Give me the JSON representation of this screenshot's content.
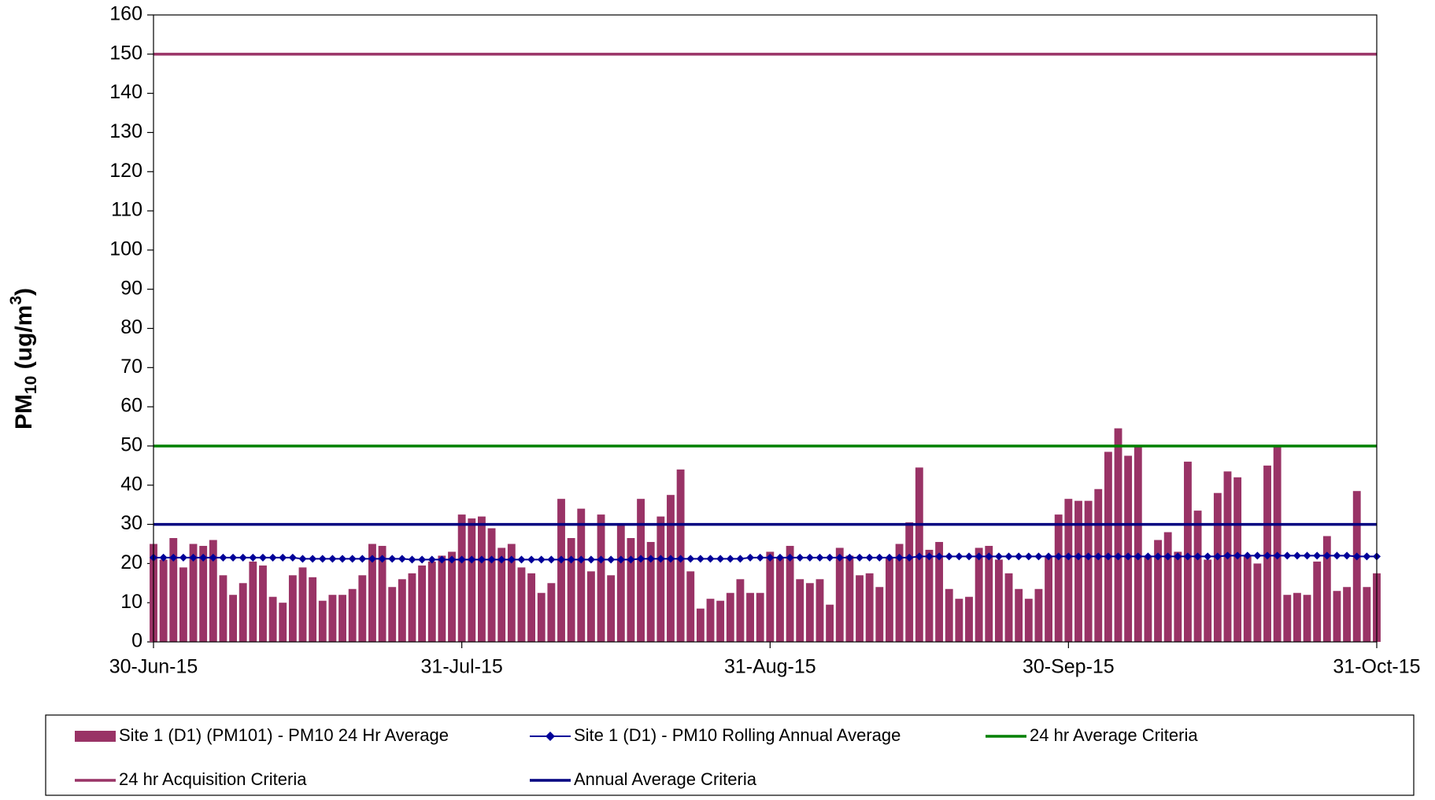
{
  "chart_data": {
    "type": "bar",
    "y_label": {
      "main": "PM",
      "sub": "10",
      "mid": " (ug/m",
      "sup": "3",
      "end": ")"
    },
    "ylim": [
      0,
      160
    ],
    "yticks": [
      0,
      10,
      20,
      30,
      40,
      50,
      60,
      70,
      80,
      90,
      100,
      110,
      120,
      130,
      140,
      150,
      160
    ],
    "xlim": [
      "2015-06-30",
      "2015-10-31"
    ],
    "xticks": [
      {
        "value": "2015-06-30",
        "label": "30-Jun-15"
      },
      {
        "value": "2015-07-31",
        "label": "31-Jul-15"
      },
      {
        "value": "2015-08-31",
        "label": "31-Aug-15"
      },
      {
        "value": "2015-09-30",
        "label": "30-Sep-15"
      },
      {
        "value": "2015-10-31",
        "label": "31-Oct-15"
      }
    ],
    "x": [
      "2015-06-30",
      "2015-07-01",
      "2015-07-02",
      "2015-07-03",
      "2015-07-04",
      "2015-07-05",
      "2015-07-06",
      "2015-07-07",
      "2015-07-08",
      "2015-07-09",
      "2015-07-10",
      "2015-07-11",
      "2015-07-12",
      "2015-07-13",
      "2015-07-14",
      "2015-07-15",
      "2015-07-16",
      "2015-07-17",
      "2015-07-18",
      "2015-07-19",
      "2015-07-20",
      "2015-07-21",
      "2015-07-22",
      "2015-07-23",
      "2015-07-24",
      "2015-07-25",
      "2015-07-26",
      "2015-07-27",
      "2015-07-28",
      "2015-07-29",
      "2015-07-30",
      "2015-07-31",
      "2015-08-01",
      "2015-08-02",
      "2015-08-03",
      "2015-08-04",
      "2015-08-05",
      "2015-08-06",
      "2015-08-07",
      "2015-08-08",
      "2015-08-09",
      "2015-08-10",
      "2015-08-11",
      "2015-08-12",
      "2015-08-13",
      "2015-08-14",
      "2015-08-15",
      "2015-08-16",
      "2015-08-17",
      "2015-08-18",
      "2015-08-19",
      "2015-08-20",
      "2015-08-21",
      "2015-08-22",
      "2015-08-23",
      "2015-08-24",
      "2015-08-25",
      "2015-08-26",
      "2015-08-27",
      "2015-08-28",
      "2015-08-29",
      "2015-08-30",
      "2015-08-31",
      "2015-09-01",
      "2015-09-02",
      "2015-09-03",
      "2015-09-04",
      "2015-09-05",
      "2015-09-06",
      "2015-09-07",
      "2015-09-08",
      "2015-09-09",
      "2015-09-10",
      "2015-09-11",
      "2015-09-12",
      "2015-09-13",
      "2015-09-14",
      "2015-09-15",
      "2015-09-16",
      "2015-09-17",
      "2015-09-18",
      "2015-09-19",
      "2015-09-20",
      "2015-09-21",
      "2015-09-22",
      "2015-09-23",
      "2015-09-24",
      "2015-09-25",
      "2015-09-26",
      "2015-09-27",
      "2015-09-28",
      "2015-09-29",
      "2015-09-30",
      "2015-10-01",
      "2015-10-02",
      "2015-10-03",
      "2015-10-04",
      "2015-10-05",
      "2015-10-06",
      "2015-10-07",
      "2015-10-08",
      "2015-10-09",
      "2015-10-10",
      "2015-10-11",
      "2015-10-12",
      "2015-10-13",
      "2015-10-14",
      "2015-10-15",
      "2015-10-16",
      "2015-10-17",
      "2015-10-18",
      "2015-10-19",
      "2015-10-20",
      "2015-10-21",
      "2015-10-22",
      "2015-10-23",
      "2015-10-24",
      "2015-10-25",
      "2015-10-26",
      "2015-10-27",
      "2015-10-28",
      "2015-10-29",
      "2015-10-30",
      "2015-10-31"
    ],
    "series": [
      {
        "name": "Site 1 (D1) (PM101) - PM10 24 Hr Average",
        "color": "#993366",
        "kind": "bar",
        "values": [
          25,
          21,
          26.5,
          19,
          25,
          24.5,
          26,
          17,
          12,
          15,
          20.5,
          19.5,
          11.5,
          10,
          17,
          19,
          16.5,
          10.5,
          12,
          12,
          13.5,
          17,
          25,
          24.5,
          14,
          16,
          17.5,
          19.5,
          20.5,
          22,
          23,
          32.5,
          31.5,
          32,
          29,
          24,
          25,
          19,
          17.5,
          12.5,
          15,
          36.5,
          26.5,
          34,
          18,
          32.5,
          17,
          30,
          26.5,
          36.5,
          25.5,
          32,
          37.5,
          44,
          18,
          8.5,
          11,
          10.5,
          12.5,
          16,
          12.5,
          12.5,
          23,
          21.5,
          24.5,
          16,
          15,
          16,
          9.5,
          24,
          22,
          17,
          17.5,
          14,
          21.5,
          25,
          30.5,
          44.5,
          23.5,
          25.5,
          13.5,
          11,
          11.5,
          24,
          24.5,
          21,
          17.5,
          13.5,
          11,
          13.5,
          22,
          32.5,
          36.5,
          36,
          36,
          39,
          48.5,
          54.5,
          47.5,
          50,
          22,
          26,
          28,
          23,
          46,
          33.5,
          21,
          38,
          43.5,
          42,
          22,
          20,
          45,
          50,
          12,
          12.5,
          12,
          20.5,
          27,
          13,
          14,
          38.5,
          14,
          17.5
        ]
      },
      {
        "name": "Site 1 (D1) - PM10 Rolling Annual Average",
        "color": "#000099",
        "kind": "line",
        "values": [
          21.5,
          21.5,
          21.5,
          21.5,
          21.5,
          21.5,
          21.5,
          21.5,
          21.5,
          21.5,
          21.5,
          21.5,
          21.5,
          21.5,
          21.5,
          21.2,
          21.2,
          21.2,
          21.2,
          21.2,
          21.2,
          21.2,
          21.2,
          21.2,
          21.2,
          21.2,
          21,
          21,
          21,
          21,
          21,
          21,
          21,
          21,
          21,
          21,
          21,
          21,
          21,
          21,
          21,
          21,
          21,
          21,
          21,
          21,
          21,
          21,
          21,
          21.2,
          21.2,
          21.2,
          21.2,
          21.2,
          21.2,
          21.2,
          21.2,
          21.2,
          21.2,
          21.2,
          21.5,
          21.5,
          21.5,
          21.5,
          21.5,
          21.5,
          21.5,
          21.5,
          21.5,
          21.5,
          21.5,
          21.5,
          21.5,
          21.5,
          21.5,
          21.5,
          21.5,
          21.8,
          21.8,
          21.8,
          21.8,
          21.8,
          21.8,
          21.8,
          21.8,
          21.8,
          21.8,
          21.8,
          21.8,
          21.8,
          21.8,
          21.8,
          21.8,
          21.8,
          21.8,
          21.8,
          21.8,
          21.8,
          21.8,
          21.8,
          21.8,
          21.8,
          21.8,
          21.8,
          21.8,
          21.8,
          21.8,
          21.8,
          22,
          22,
          22,
          22,
          22,
          22,
          22,
          22,
          22,
          22,
          22,
          22,
          22,
          21.8,
          21.8,
          21.8
        ]
      }
    ],
    "reference_lines": [
      {
        "name": "24 hr Average Criteria",
        "color": "#008000",
        "value": 50
      },
      {
        "name": "24 hr Acquisition Criteria",
        "color": "#993366",
        "value": 150
      },
      {
        "name": "Annual Average Criteria",
        "color": "#000080",
        "value": 30
      }
    ]
  }
}
